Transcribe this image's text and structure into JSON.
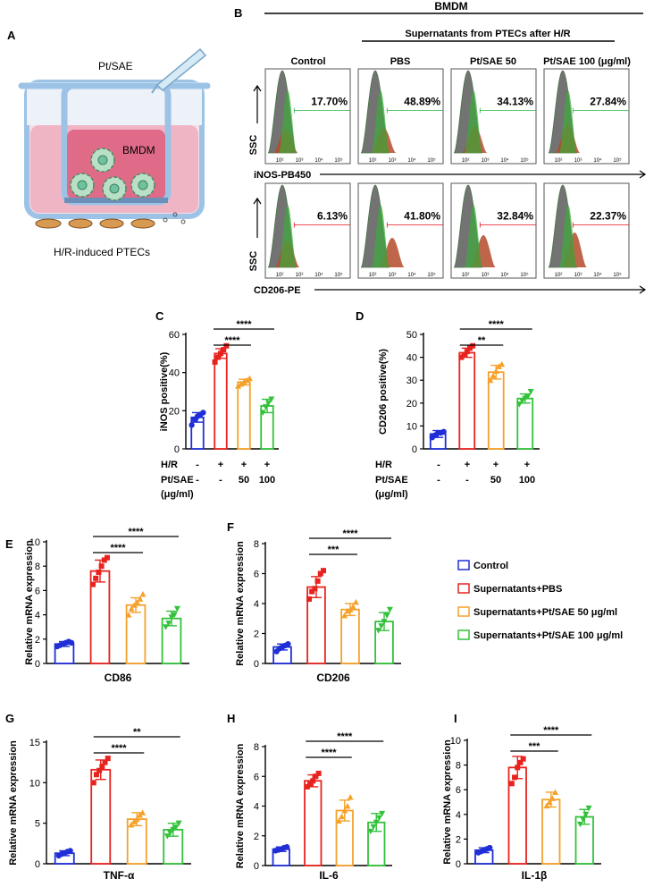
{
  "panel_letters": [
    "A",
    "B",
    "C",
    "D",
    "E",
    "F",
    "G",
    "H",
    "I"
  ],
  "colors": {
    "control": "#1f2ed6",
    "pbs": "#e8231f",
    "pt50": "#f5a12a",
    "pt100": "#33c13b",
    "flow_green": "#24b33a",
    "flow_red": "#e3141b"
  },
  "schematic": {
    "pipette_label": "Pt/SAE",
    "insert_label": "BMDM",
    "bottom_label": "H/R-induced PTECs"
  },
  "flow": {
    "header": "BMDM",
    "subheader": "Supernatants from PTECs after H/R",
    "columns": [
      "Control",
      "PBS",
      "Pt/SAE 50",
      "Pt/SAE 100 (μg/ml)"
    ],
    "y_axis_label": "SSC",
    "rows": [
      {
        "marker_label": "iNOS-PB450",
        "percentages": [
          "17.70%",
          "48.89%",
          "34.13%",
          "27.84%"
        ],
        "color": "#24b33a"
      },
      {
        "marker_label": "CD206-PE",
        "percentages": [
          "6.13%",
          "41.80%",
          "32.84%",
          "22.37%"
        ],
        "color": "#e3141b"
      }
    ],
    "tick_labels": [
      "10²",
      "10³",
      "10⁴",
      "10⁵"
    ]
  },
  "treatment_table": {
    "row1_label": "H/R",
    "row1": [
      "-",
      "+",
      "+",
      "+"
    ],
    "row2_label": "Pt/SAE",
    "row2_label2": "(μg/ml)",
    "row2": [
      "-",
      "-",
      "50",
      "100"
    ]
  },
  "legend": [
    "Control",
    "Supernatants+PBS",
    "Supernatants+Pt/SAE 50 μg/ml",
    "Supernatants+Pt/SAE 100 μg/ml"
  ],
  "chart_data": [
    {
      "panel": "C",
      "type": "bar",
      "ylabel": "iNOS positive(%)",
      "ylim": [
        0,
        60
      ],
      "yticks": [
        0,
        20,
        40,
        60
      ],
      "categories": [
        "Control",
        "Supernatants+PBS",
        "Supernatants+Pt/SAE 50 μg/ml",
        "Supernatants+Pt/SAE 100 μg/ml"
      ],
      "values": [
        16.5,
        50,
        35,
        22.5
      ],
      "errors": [
        2.5,
        2.5,
        1.5,
        3.5
      ],
      "points": [
        [
          12.5,
          15.5,
          17,
          18,
          19
        ],
        [
          45.5,
          48,
          50,
          52,
          54
        ],
        [
          33,
          34,
          35,
          36,
          37
        ],
        [
          19,
          22,
          24,
          26
        ]
      ],
      "significance": [
        {
          "from": 1,
          "to": 2,
          "label": "****"
        },
        {
          "from": 1,
          "to": 3,
          "label": "****"
        }
      ]
    },
    {
      "panel": "D",
      "type": "bar",
      "ylabel": "CD206 positive(%)",
      "ylim": [
        0,
        50
      ],
      "yticks": [
        0,
        10,
        20,
        30,
        40,
        50
      ],
      "categories": [
        "Control",
        "Supernatants+PBS",
        "Supernatants+Pt/SAE 50 μg/ml",
        "Supernatants+Pt/SAE 100 μg/ml"
      ],
      "values": [
        6.5,
        42,
        33.5,
        22
      ],
      "errors": [
        1.5,
        2,
        3,
        2
      ],
      "points": [
        [
          5,
          6,
          7,
          7,
          7.5
        ],
        [
          40,
          41,
          42.5,
          44,
          45
        ],
        [
          30,
          32,
          34,
          36,
          37
        ],
        [
          19.5,
          21,
          22,
          23,
          25
        ]
      ],
      "significance": [
        {
          "from": 1,
          "to": 2,
          "label": "**"
        },
        {
          "from": 1,
          "to": 3,
          "label": "****"
        }
      ]
    },
    {
      "panel": "E",
      "type": "bar",
      "xlabel": "CD86",
      "ylabel": "Relative mRNA expression",
      "ylim": [
        0,
        10
      ],
      "yticks": [
        0,
        2,
        4,
        6,
        8,
        10
      ],
      "categories": [
        "Control",
        "Supernatants+PBS",
        "Supernatants+Pt/SAE 50 μg/ml",
        "Supernatants+Pt/SAE 100 μg/ml"
      ],
      "values": [
        1.6,
        7.6,
        4.8,
        3.7
      ],
      "errors": [
        0.2,
        0.9,
        0.6,
        0.6
      ],
      "points": [
        [
          1.4,
          1.5,
          1.6,
          1.7,
          1.8,
          1.7
        ],
        [
          6.5,
          7,
          7.5,
          8,
          8.5,
          8.7
        ],
        [
          4,
          4.5,
          4.8,
          5,
          5.3,
          5.7
        ],
        [
          3,
          3.3,
          3.8,
          4,
          4.5
        ]
      ],
      "significance": [
        {
          "from": 1,
          "to": 2,
          "label": "****"
        },
        {
          "from": 1,
          "to": 3,
          "label": "****"
        }
      ]
    },
    {
      "panel": "F",
      "type": "bar",
      "xlabel": "CD206",
      "ylabel": "Relative mRNA expression",
      "ylim": [
        0,
        8
      ],
      "yticks": [
        0,
        2,
        4,
        6,
        8
      ],
      "categories": [
        "Control",
        "Supernatants+PBS",
        "Supernatants+Pt/SAE 50 μg/ml",
        "Supernatants+Pt/SAE 100 μg/ml"
      ],
      "values": [
        1.1,
        5.1,
        3.6,
        2.8
      ],
      "errors": [
        0.2,
        0.7,
        0.4,
        0.6
      ],
      "points": [
        [
          0.8,
          1,
          1.1,
          1.2,
          1.3
        ],
        [
          4.3,
          4.8,
          5,
          5.5,
          6,
          6.2
        ],
        [
          3.2,
          3.5,
          3.6,
          3.8,
          4.1
        ],
        [
          2.2,
          2.5,
          2.8,
          3.2,
          3.6
        ]
      ],
      "significance": [
        {
          "from": 1,
          "to": 2,
          "label": "***"
        },
        {
          "from": 1,
          "to": 3,
          "label": "****"
        }
      ]
    },
    {
      "panel": "G",
      "type": "bar",
      "xlabel": "TNF-α",
      "ylabel": "Relative mRNA expression",
      "ylim": [
        0,
        15
      ],
      "yticks": [
        0,
        5,
        10,
        15
      ],
      "categories": [
        "Control",
        "Supernatants+PBS",
        "Supernatants+Pt/SAE 50 μg/ml",
        "Supernatants+Pt/SAE 100 μg/ml"
      ],
      "values": [
        1.3,
        11.6,
        5.5,
        4.2
      ],
      "errors": [
        0.3,
        1.2,
        0.8,
        0.8
      ],
      "points": [
        [
          1,
          1.2,
          1.3,
          1.5,
          1.6
        ],
        [
          10,
          11,
          11.5,
          12,
          12.5,
          13
        ],
        [
          4.8,
          5.2,
          5.5,
          6,
          6.3
        ],
        [
          3.4,
          3.8,
          4.2,
          4.5,
          5
        ]
      ],
      "significance": [
        {
          "from": 1,
          "to": 2,
          "label": "****"
        },
        {
          "from": 1,
          "to": 3,
          "label": "**"
        }
      ]
    },
    {
      "panel": "H",
      "type": "bar",
      "xlabel": "IL-6",
      "ylabel": "Relative mRNA expression",
      "ylim": [
        0,
        8
      ],
      "yticks": [
        0,
        2,
        4,
        6,
        8
      ],
      "categories": [
        "Control",
        "Supernatants+PBS",
        "Supernatants+Pt/SAE 50 μg/ml",
        "Supernatants+Pt/SAE 100 μg/ml"
      ],
      "values": [
        1.1,
        5.7,
        3.7,
        2.9
      ],
      "errors": [
        0.15,
        0.4,
        0.7,
        0.6
      ],
      "points": [
        [
          1,
          1.05,
          1.1,
          1.2,
          1.25
        ],
        [
          5.3,
          5.5,
          5.7,
          6,
          6.2
        ],
        [
          3,
          3.3,
          3.7,
          4,
          4.6
        ],
        [
          2.3,
          2.6,
          2.9,
          3.2,
          3.5
        ]
      ],
      "significance": [
        {
          "from": 1,
          "to": 2,
          "label": "****"
        },
        {
          "from": 1,
          "to": 3,
          "label": "****"
        }
      ]
    },
    {
      "panel": "I",
      "type": "bar",
      "xlabel": "IL-1β",
      "ylabel": "Relative mRNA expression",
      "ylim": [
        0,
        10
      ],
      "yticks": [
        0,
        2,
        4,
        6,
        8,
        10
      ],
      "categories": [
        "Control",
        "Supernatants+PBS",
        "Supernatants+Pt/SAE 50 μg/ml",
        "Supernatants+Pt/SAE 100 μg/ml"
      ],
      "values": [
        1.1,
        7.8,
        5.2,
        3.8
      ],
      "errors": [
        0.2,
        0.9,
        0.6,
        0.6
      ],
      "points": [
        [
          0.9,
          1,
          1.1,
          1.2,
          1.3
        ],
        [
          6.5,
          7,
          7.8,
          8.2,
          8.5
        ],
        [
          4.7,
          5,
          5.3,
          5.8
        ],
        [
          3.2,
          3.6,
          4,
          4.5
        ]
      ],
      "significance": [
        {
          "from": 1,
          "to": 2,
          "label": "***"
        },
        {
          "from": 1,
          "to": 3,
          "label": "****"
        }
      ]
    }
  ]
}
